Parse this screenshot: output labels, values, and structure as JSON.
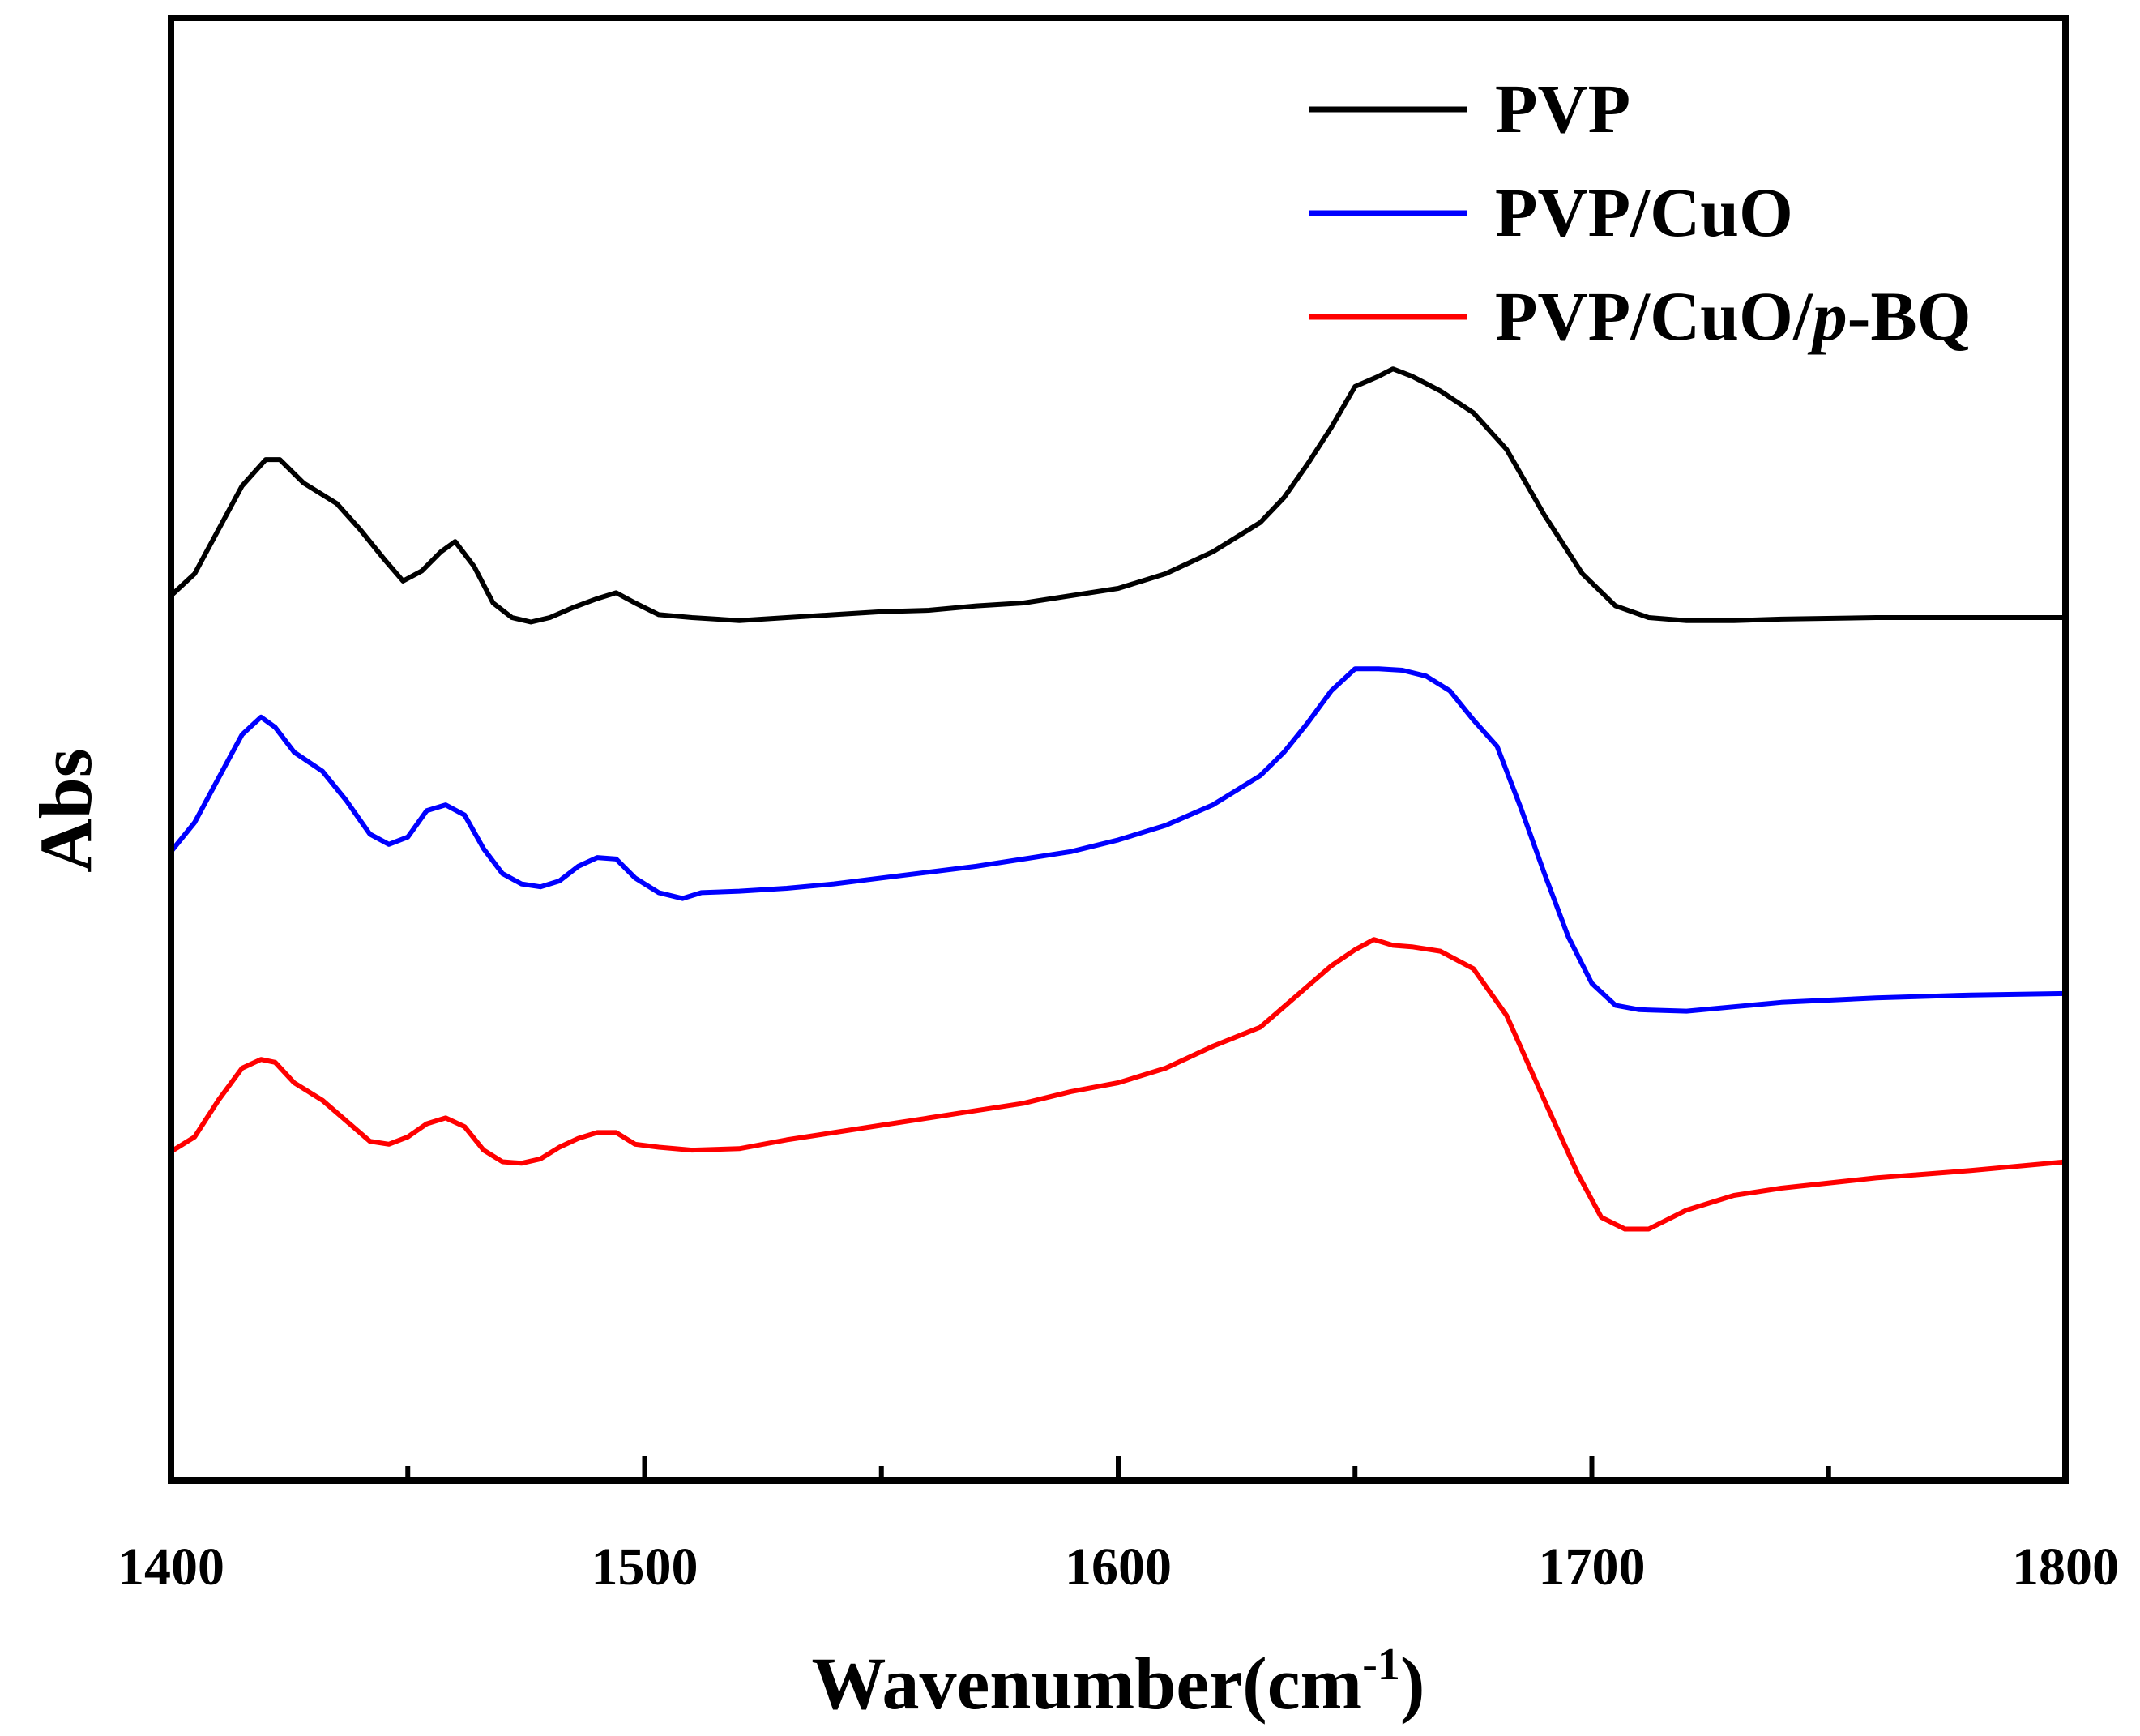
{
  "chart_data": {
    "type": "line",
    "title": "",
    "xlabel": "Wavenumber(cm",
    "xlabel_sup": "-1",
    "xlabel_close": ")",
    "ylabel": "Abs",
    "xlim": [
      1400,
      1800
    ],
    "ylim": [
      0,
      10
    ],
    "grid": false,
    "x_ticks": [
      1400,
      1500,
      1600,
      1700,
      1800
    ],
    "x_tick_labels": [
      "1400",
      "1500",
      "1600",
      "1700",
      "1800"
    ],
    "legend_position": "top-right",
    "series": [
      {
        "name": "PVP",
        "legend_parts": [
          {
            "text": "PVP",
            "italic": false
          }
        ],
        "color": "#000000",
        "x": [
          1400,
          1405,
          1410,
          1415,
          1420,
          1423,
          1428,
          1435,
          1440,
          1445,
          1449,
          1453,
          1457,
          1460,
          1464,
          1468,
          1472,
          1476,
          1480,
          1485,
          1490,
          1494,
          1498,
          1503,
          1510,
          1520,
          1530,
          1540,
          1550,
          1560,
          1570,
          1580,
          1590,
          1600,
          1610,
          1620,
          1630,
          1635,
          1640,
          1645,
          1650,
          1655,
          1658,
          1662,
          1668,
          1675,
          1682,
          1690,
          1698,
          1705,
          1712,
          1720,
          1730,
          1740,
          1760,
          1780,
          1800
        ],
        "y": [
          6.05,
          6.2,
          6.5,
          6.8,
          6.98,
          6.98,
          6.82,
          6.68,
          6.5,
          6.3,
          6.15,
          6.22,
          6.35,
          6.42,
          6.25,
          6.0,
          5.9,
          5.87,
          5.9,
          5.97,
          6.03,
          6.07,
          6.0,
          5.92,
          5.9,
          5.88,
          5.9,
          5.92,
          5.94,
          5.95,
          5.98,
          6.0,
          6.05,
          6.1,
          6.2,
          6.35,
          6.55,
          6.72,
          6.95,
          7.2,
          7.48,
          7.55,
          7.6,
          7.55,
          7.45,
          7.3,
          7.05,
          6.6,
          6.2,
          5.98,
          5.9,
          5.88,
          5.88,
          5.89,
          5.9,
          5.9,
          5.9
        ]
      },
      {
        "name": "PVP/CuO",
        "legend_parts": [
          {
            "text": "PVP/CuO",
            "italic": false
          }
        ],
        "color": "#0000ff",
        "x": [
          1400,
          1405,
          1410,
          1415,
          1419,
          1422,
          1426,
          1432,
          1437,
          1442,
          1446,
          1450,
          1454,
          1458,
          1462,
          1466,
          1470,
          1474,
          1478,
          1482,
          1486,
          1490,
          1494,
          1498,
          1503,
          1508,
          1512,
          1520,
          1530,
          1540,
          1550,
          1560,
          1570,
          1580,
          1590,
          1600,
          1610,
          1620,
          1630,
          1635,
          1640,
          1645,
          1650,
          1655,
          1660,
          1665,
          1670,
          1675,
          1680,
          1685,
          1690,
          1695,
          1700,
          1705,
          1710,
          1720,
          1730,
          1740,
          1760,
          1780,
          1800
        ],
        "y": [
          4.3,
          4.5,
          4.8,
          5.1,
          5.22,
          5.15,
          4.98,
          4.85,
          4.65,
          4.42,
          4.35,
          4.4,
          4.58,
          4.62,
          4.55,
          4.32,
          4.15,
          4.08,
          4.06,
          4.1,
          4.2,
          4.26,
          4.25,
          4.12,
          4.02,
          3.98,
          4.02,
          4.03,
          4.05,
          4.08,
          4.12,
          4.16,
          4.2,
          4.25,
          4.3,
          4.38,
          4.48,
          4.62,
          4.82,
          4.98,
          5.18,
          5.4,
          5.55,
          5.55,
          5.54,
          5.5,
          5.4,
          5.2,
          5.02,
          4.6,
          4.15,
          3.72,
          3.4,
          3.25,
          3.22,
          3.21,
          3.24,
          3.27,
          3.3,
          3.32,
          3.33
        ]
      },
      {
        "name": "PVP/CuO/p-BQ",
        "legend_parts": [
          {
            "text": "PVP/CuO/",
            "italic": false
          },
          {
            "text": "p",
            "italic": true
          },
          {
            "text": "-BQ",
            "italic": false
          }
        ],
        "color": "#ff0000",
        "x": [
          1400,
          1405,
          1410,
          1415,
          1419,
          1422,
          1426,
          1432,
          1437,
          1442,
          1446,
          1450,
          1454,
          1458,
          1462,
          1466,
          1470,
          1474,
          1478,
          1482,
          1486,
          1490,
          1494,
          1498,
          1503,
          1510,
          1520,
          1530,
          1540,
          1550,
          1560,
          1570,
          1580,
          1590,
          1600,
          1610,
          1620,
          1630,
          1635,
          1640,
          1645,
          1650,
          1654,
          1658,
          1662,
          1668,
          1675,
          1682,
          1690,
          1697,
          1702,
          1707,
          1712,
          1720,
          1730,
          1740,
          1760,
          1780,
          1800
        ],
        "y": [
          2.25,
          2.35,
          2.6,
          2.82,
          2.88,
          2.86,
          2.72,
          2.6,
          2.46,
          2.32,
          2.3,
          2.35,
          2.44,
          2.48,
          2.42,
          2.26,
          2.18,
          2.17,
          2.2,
          2.28,
          2.34,
          2.38,
          2.38,
          2.3,
          2.28,
          2.26,
          2.27,
          2.33,
          2.38,
          2.43,
          2.48,
          2.53,
          2.58,
          2.66,
          2.72,
          2.82,
          2.97,
          3.1,
          3.24,
          3.38,
          3.52,
          3.63,
          3.7,
          3.66,
          3.65,
          3.62,
          3.5,
          3.18,
          2.6,
          2.1,
          1.8,
          1.72,
          1.72,
          1.85,
          1.95,
          2.0,
          2.07,
          2.12,
          2.18
        ]
      }
    ]
  }
}
